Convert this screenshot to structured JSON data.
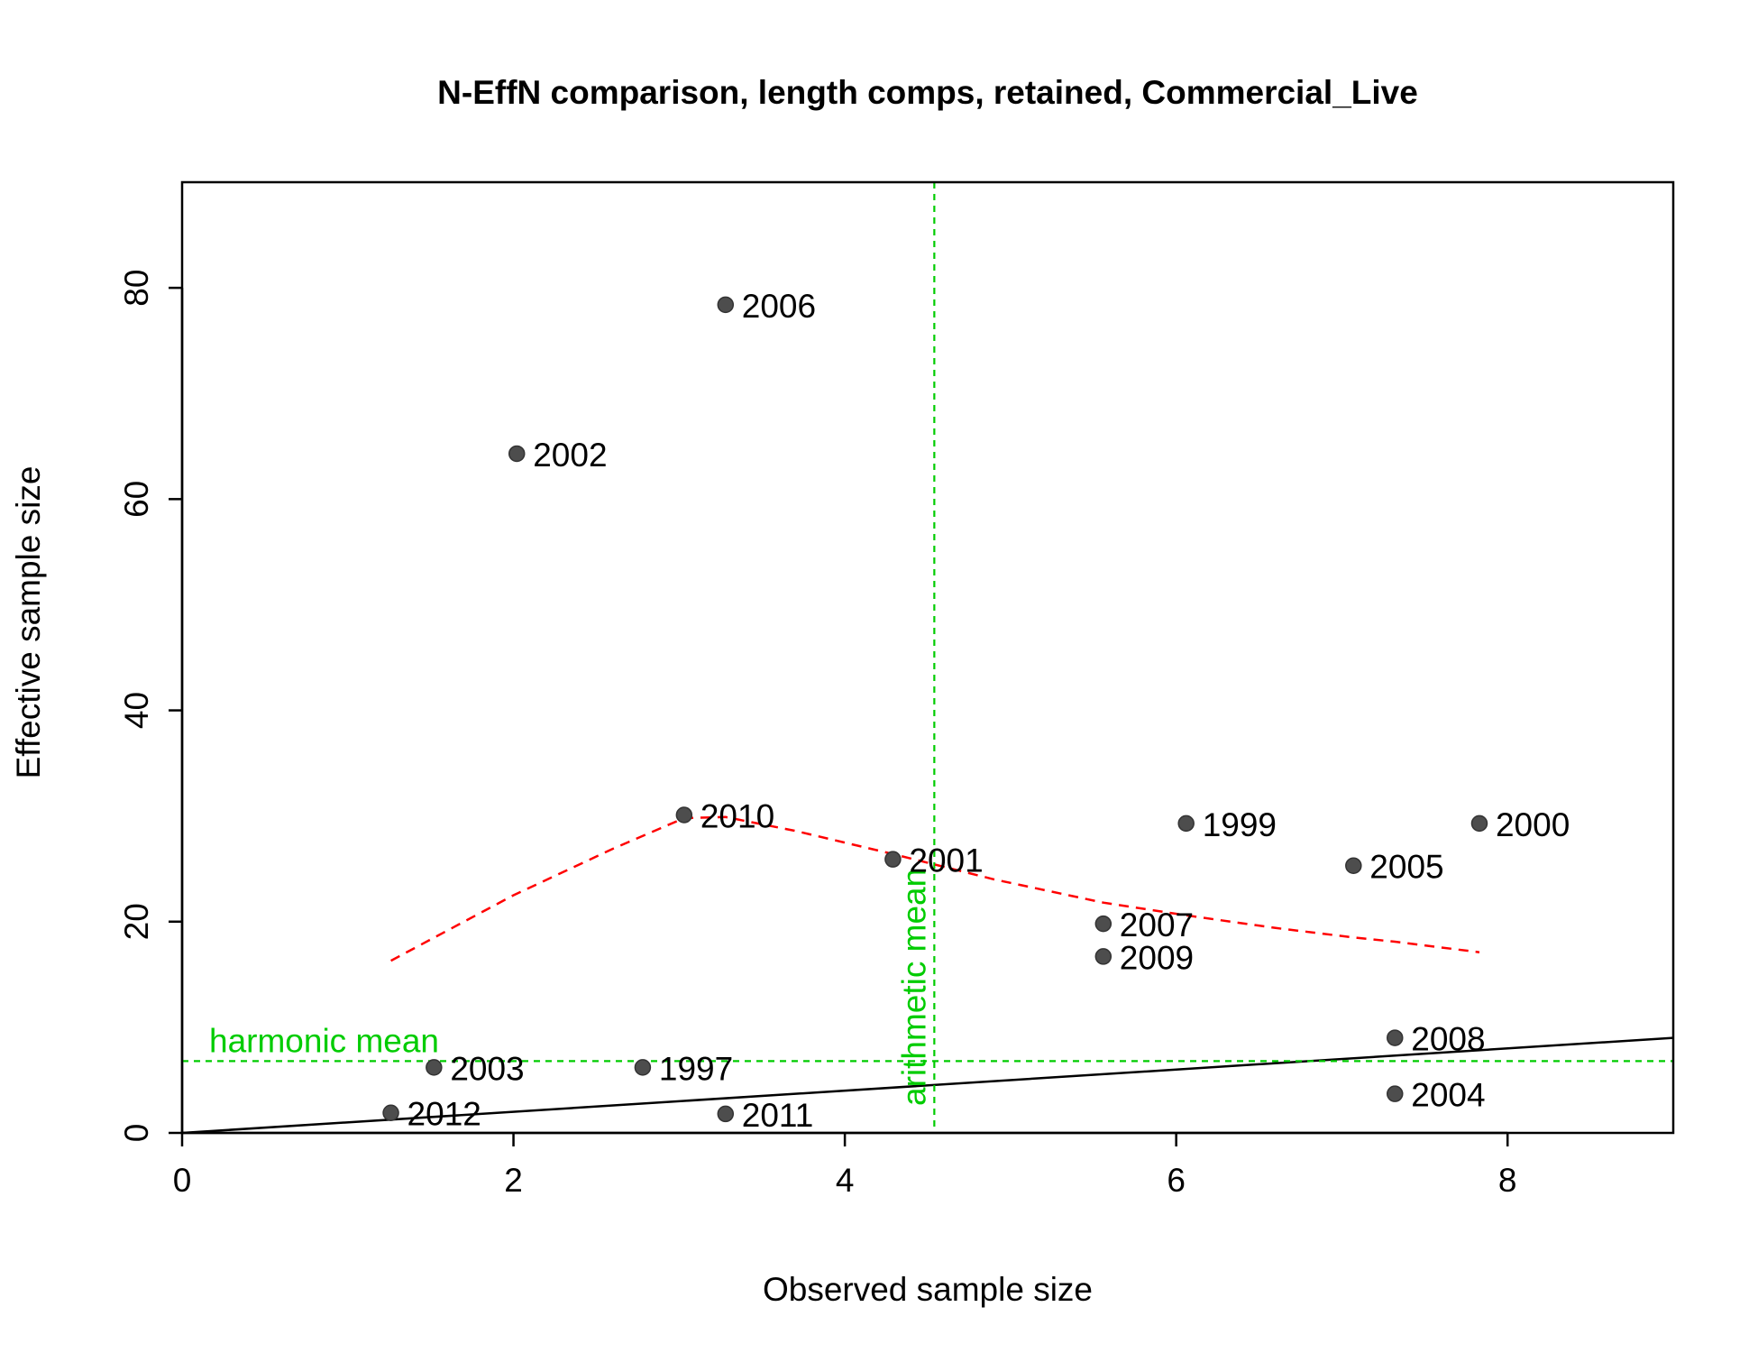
{
  "chart_data": {
    "type": "scatter",
    "title": "N-EffN comparison, length comps, retained, Commercial_Live",
    "xlabel": "Observed sample size",
    "ylabel": "Effective sample size",
    "xlim": [
      0,
      9
    ],
    "ylim": [
      0,
      90
    ],
    "x_ticks": [
      0,
      2,
      4,
      6,
      8
    ],
    "y_ticks": [
      0,
      20,
      40,
      60,
      80
    ],
    "points": [
      {
        "label": "1997",
        "x": 2.78,
        "y": 6.2
      },
      {
        "label": "1999",
        "x": 6.06,
        "y": 29.3
      },
      {
        "label": "2000",
        "x": 7.83,
        "y": 29.3
      },
      {
        "label": "2001",
        "x": 4.29,
        "y": 25.9
      },
      {
        "label": "2002",
        "x": 2.02,
        "y": 64.3
      },
      {
        "label": "2003",
        "x": 1.52,
        "y": 6.2
      },
      {
        "label": "2004",
        "x": 7.32,
        "y": 3.7
      },
      {
        "label": "2005",
        "x": 7.07,
        "y": 25.3
      },
      {
        "label": "2006",
        "x": 3.28,
        "y": 78.4
      },
      {
        "label": "2007",
        "x": 5.56,
        "y": 19.8
      },
      {
        "label": "2008",
        "x": 7.32,
        "y": 9.0
      },
      {
        "label": "2009",
        "x": 5.56,
        "y": 16.7
      },
      {
        "label": "2010",
        "x": 3.03,
        "y": 30.1
      },
      {
        "label": "2011",
        "x": 3.28,
        "y": 1.8
      },
      {
        "label": "2012",
        "x": 1.26,
        "y": 1.9
      }
    ],
    "reference_line": {
      "type": "1:1",
      "x": [
        0,
        9
      ],
      "y": [
        0,
        9
      ],
      "color": "#000000"
    },
    "smoother": {
      "color": "#ff0000",
      "x": [
        1.26,
        2.0,
        2.6,
        3.03,
        3.28,
        3.7,
        4.29,
        4.9,
        5.56,
        6.06,
        6.6,
        7.07,
        7.32,
        7.83
      ],
      "y": [
        16.3,
        22.5,
        26.9,
        29.8,
        29.9,
        28.6,
        26.4,
        24.0,
        21.8,
        20.6,
        19.4,
        18.5,
        18.1,
        17.1
      ]
    },
    "harmonic_mean": {
      "label": "harmonic mean",
      "value": 6.8,
      "color": "#00cc00"
    },
    "arithmetic_mean": {
      "label": "arithmetic mean",
      "value": 4.54,
      "color": "#00cc00"
    },
    "point_color": "#4d4d4d",
    "grid": false,
    "legend": "none"
  }
}
